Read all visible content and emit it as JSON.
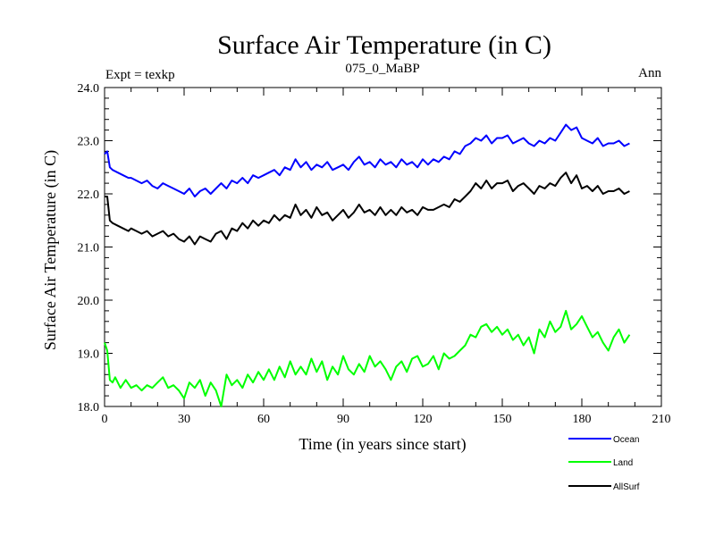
{
  "chart_data": {
    "type": "line",
    "title": "Surface Air Temperature (in C)",
    "subtitle": "075_0_MaBP",
    "left_label": "Expt = texkp",
    "right_label": "Ann",
    "xlabel": "Time (in years since start)",
    "ylabel": "Surface Air Temperature (in C)",
    "xlim": [
      0,
      210
    ],
    "ylim": [
      18.0,
      24.0
    ],
    "x_ticks": [
      0,
      30,
      60,
      90,
      120,
      150,
      180,
      210
    ],
    "x_tick_labels": [
      "0",
      "30",
      "60",
      "90",
      "120",
      "150",
      "180",
      "210"
    ],
    "y_ticks": [
      18.0,
      19.0,
      20.0,
      21.0,
      22.0,
      23.0,
      24.0
    ],
    "y_tick_labels": [
      "18.0",
      "19.0",
      "20.0",
      "21.0",
      "22.0",
      "23.0",
      "24.0"
    ],
    "legend_position": "bottom-right, outside plot",
    "series": [
      {
        "name": "Ocean",
        "color": "#0000ff",
        "x": [
          0,
          1,
          2,
          3,
          5,
          7,
          9,
          10,
          12,
          14,
          16,
          18,
          20,
          22,
          24,
          26,
          28,
          30,
          32,
          34,
          36,
          38,
          40,
          42,
          44,
          46,
          48,
          50,
          52,
          54,
          56,
          58,
          60,
          62,
          64,
          66,
          68,
          70,
          72,
          74,
          76,
          78,
          80,
          82,
          84,
          86,
          88,
          90,
          92,
          94,
          96,
          98,
          100,
          102,
          104,
          106,
          108,
          110,
          112,
          114,
          116,
          118,
          120,
          122,
          124,
          126,
          128,
          130,
          132,
          134,
          136,
          138,
          140,
          142,
          144,
          146,
          148,
          150,
          152,
          154,
          156,
          158,
          160,
          162,
          164,
          166,
          168,
          170,
          172,
          174,
          176,
          178,
          180,
          182,
          184,
          186,
          188,
          190,
          192,
          194,
          196,
          198
        ],
        "values": [
          22.75,
          22.8,
          22.5,
          22.45,
          22.4,
          22.35,
          22.3,
          22.3,
          22.25,
          22.2,
          22.25,
          22.15,
          22.1,
          22.2,
          22.15,
          22.1,
          22.05,
          22.0,
          22.1,
          21.95,
          22.05,
          22.1,
          22.0,
          22.1,
          22.2,
          22.1,
          22.25,
          22.2,
          22.3,
          22.2,
          22.35,
          22.3,
          22.35,
          22.4,
          22.45,
          22.35,
          22.5,
          22.45,
          22.65,
          22.5,
          22.6,
          22.45,
          22.55,
          22.5,
          22.6,
          22.45,
          22.5,
          22.55,
          22.45,
          22.6,
          22.7,
          22.55,
          22.6,
          22.5,
          22.65,
          22.55,
          22.6,
          22.5,
          22.65,
          22.55,
          22.6,
          22.5,
          22.65,
          22.55,
          22.65,
          22.6,
          22.7,
          22.65,
          22.8,
          22.75,
          22.9,
          22.95,
          23.05,
          23.0,
          23.1,
          22.95,
          23.05,
          23.05,
          23.1,
          22.95,
          23.0,
          23.05,
          22.95,
          22.9,
          23.0,
          22.95,
          23.05,
          23.0,
          23.15,
          23.3,
          23.2,
          23.25,
          23.05,
          23.0,
          22.95,
          23.05,
          22.9,
          22.95,
          22.95,
          23.0,
          22.9,
          22.95
        ]
      },
      {
        "name": "Land",
        "color": "#00ff00",
        "x": [
          0,
          1,
          2,
          3,
          4,
          5,
          6,
          8,
          10,
          12,
          14,
          16,
          18,
          20,
          22,
          24,
          26,
          28,
          30,
          32,
          34,
          36,
          38,
          40,
          42,
          44,
          46,
          48,
          50,
          52,
          54,
          56,
          58,
          60,
          62,
          64,
          66,
          68,
          70,
          72,
          74,
          76,
          78,
          80,
          82,
          84,
          86,
          88,
          90,
          92,
          94,
          96,
          98,
          100,
          102,
          104,
          106,
          108,
          110,
          112,
          114,
          116,
          118,
          120,
          122,
          124,
          126,
          128,
          130,
          132,
          134,
          136,
          138,
          140,
          142,
          144,
          146,
          148,
          150,
          152,
          154,
          156,
          158,
          160,
          162,
          164,
          166,
          168,
          170,
          172,
          174,
          176,
          178,
          180,
          182,
          184,
          186,
          188,
          190,
          192,
          194,
          196,
          198
        ],
        "values": [
          19.2,
          19.05,
          18.5,
          18.45,
          18.55,
          18.45,
          18.35,
          18.5,
          18.35,
          18.4,
          18.3,
          18.4,
          18.35,
          18.45,
          18.55,
          18.35,
          18.4,
          18.3,
          18.15,
          18.45,
          18.35,
          18.5,
          18.2,
          18.45,
          18.3,
          18.0,
          18.6,
          18.4,
          18.5,
          18.35,
          18.6,
          18.45,
          18.65,
          18.5,
          18.7,
          18.5,
          18.75,
          18.55,
          18.85,
          18.6,
          18.75,
          18.6,
          18.9,
          18.65,
          18.85,
          18.5,
          18.75,
          18.6,
          18.95,
          18.7,
          18.6,
          18.8,
          18.65,
          18.95,
          18.75,
          18.85,
          18.7,
          18.5,
          18.75,
          18.85,
          18.65,
          18.9,
          18.95,
          18.75,
          18.8,
          18.95,
          18.7,
          19.0,
          18.9,
          18.95,
          19.05,
          19.15,
          19.35,
          19.3,
          19.5,
          19.55,
          19.4,
          19.5,
          19.35,
          19.45,
          19.25,
          19.35,
          19.15,
          19.3,
          19.0,
          19.45,
          19.3,
          19.6,
          19.4,
          19.5,
          19.8,
          19.45,
          19.55,
          19.7,
          19.5,
          19.3,
          19.4,
          19.2,
          19.05,
          19.3,
          19.45,
          19.2,
          19.35
        ]
      },
      {
        "name": "AllSurf",
        "color": "#000000",
        "x": [
          0,
          1,
          2,
          3,
          5,
          7,
          9,
          10,
          12,
          14,
          16,
          18,
          20,
          22,
          24,
          26,
          28,
          30,
          32,
          34,
          36,
          38,
          40,
          42,
          44,
          46,
          48,
          50,
          52,
          54,
          56,
          58,
          60,
          62,
          64,
          66,
          68,
          70,
          72,
          74,
          76,
          78,
          80,
          82,
          84,
          86,
          88,
          90,
          92,
          94,
          96,
          98,
          100,
          102,
          104,
          106,
          108,
          110,
          112,
          114,
          116,
          118,
          120,
          122,
          124,
          126,
          128,
          130,
          132,
          134,
          136,
          138,
          140,
          142,
          144,
          146,
          148,
          150,
          152,
          154,
          156,
          158,
          160,
          162,
          164,
          166,
          168,
          170,
          172,
          174,
          176,
          178,
          180,
          182,
          184,
          186,
          188,
          190,
          192,
          194,
          196,
          198
        ],
        "values": [
          21.95,
          21.95,
          21.5,
          21.45,
          21.4,
          21.35,
          21.3,
          21.35,
          21.3,
          21.25,
          21.3,
          21.2,
          21.25,
          21.3,
          21.2,
          21.25,
          21.15,
          21.1,
          21.2,
          21.05,
          21.2,
          21.15,
          21.1,
          21.25,
          21.3,
          21.15,
          21.35,
          21.3,
          21.45,
          21.35,
          21.5,
          21.4,
          21.5,
          21.45,
          21.6,
          21.5,
          21.6,
          21.55,
          21.8,
          21.6,
          21.7,
          21.55,
          21.75,
          21.6,
          21.65,
          21.5,
          21.6,
          21.7,
          21.55,
          21.65,
          21.8,
          21.65,
          21.7,
          21.6,
          21.75,
          21.6,
          21.7,
          21.6,
          21.75,
          21.65,
          21.7,
          21.6,
          21.75,
          21.7,
          21.7,
          21.75,
          21.8,
          21.75,
          21.9,
          21.85,
          21.95,
          22.05,
          22.2,
          22.1,
          22.25,
          22.1,
          22.2,
          22.2,
          22.25,
          22.05,
          22.15,
          22.2,
          22.1,
          22.0,
          22.15,
          22.1,
          22.2,
          22.15,
          22.3,
          22.4,
          22.2,
          22.35,
          22.1,
          22.15,
          22.05,
          22.15,
          22.0,
          22.05,
          22.05,
          22.1,
          22.0,
          22.05
        ]
      }
    ]
  }
}
